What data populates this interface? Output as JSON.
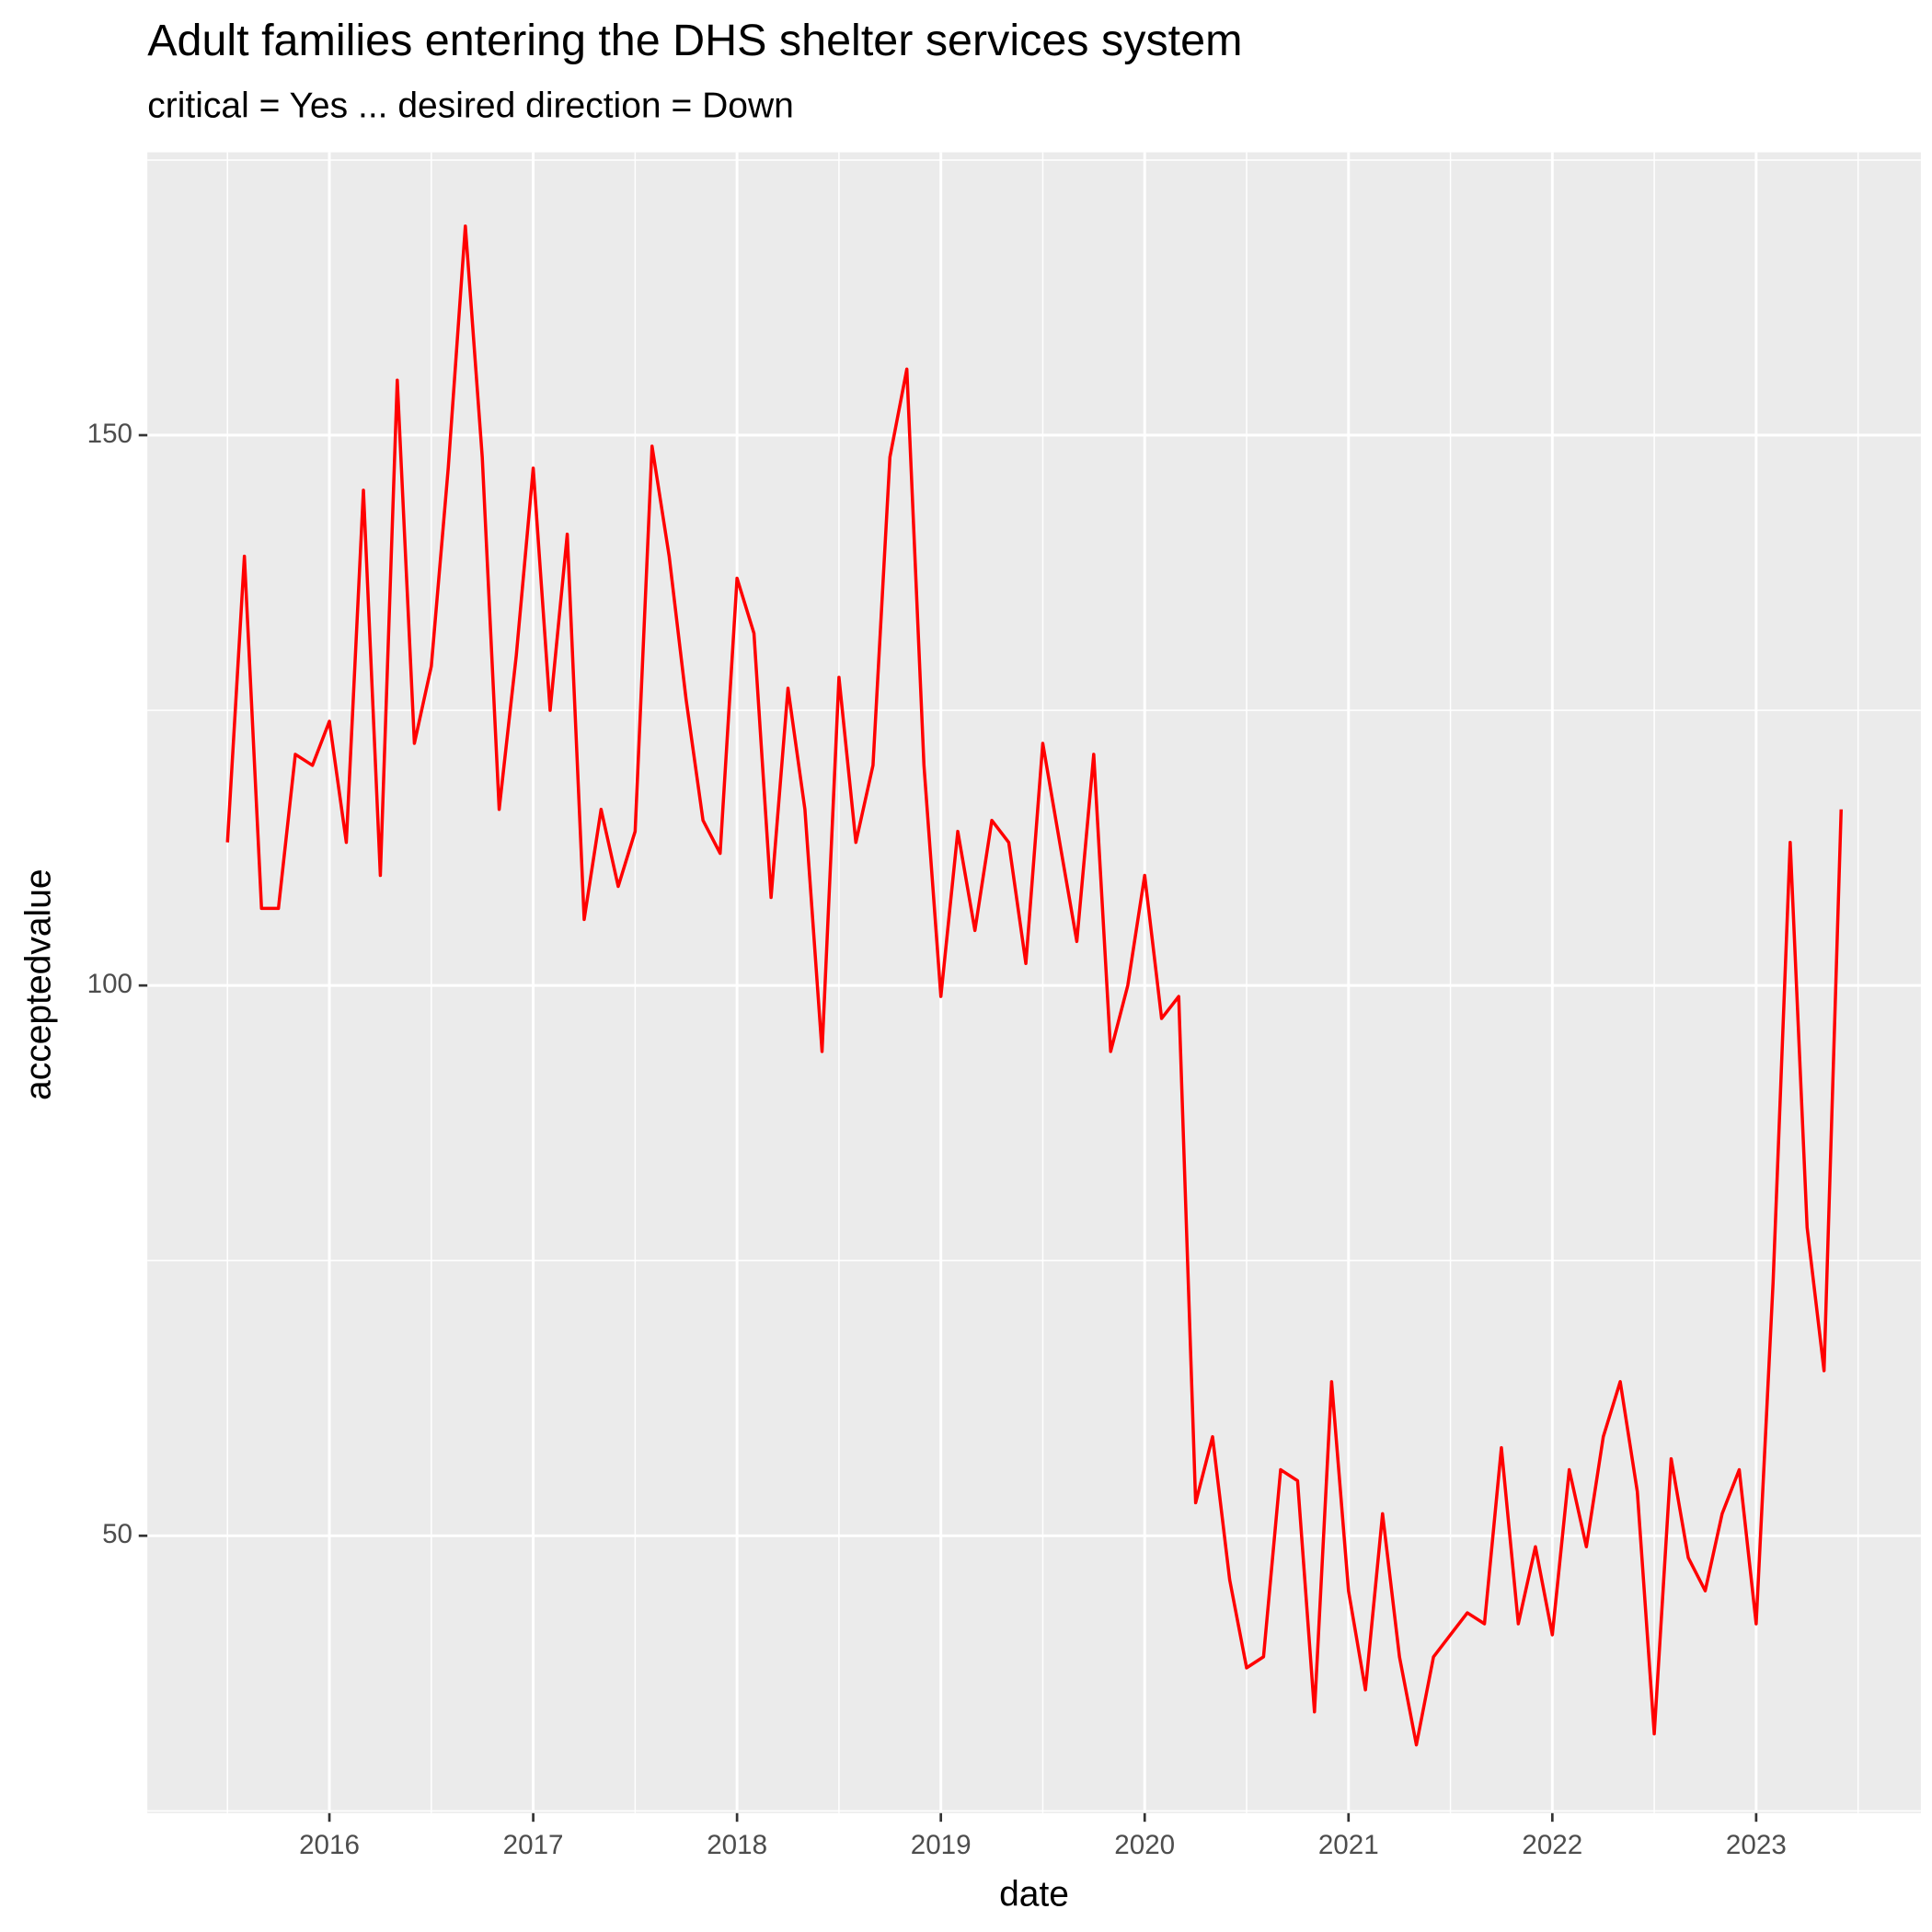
{
  "chart_data": {
    "type": "line",
    "title": "Adult families entering the DHS shelter services system",
    "subtitle": "critical = Yes ... desired direction = Down",
    "x_label": "date",
    "y_label": "acceptedvalue",
    "x": [
      2015.5,
      2015.583,
      2015.667,
      2015.75,
      2015.833,
      2015.917,
      2016,
      2016.083,
      2016.167,
      2016.25,
      2016.333,
      2016.417,
      2016.5,
      2016.583,
      2016.667,
      2016.75,
      2016.833,
      2016.917,
      2017,
      2017.083,
      2017.167,
      2017.25,
      2017.333,
      2017.417,
      2017.5,
      2017.583,
      2017.667,
      2017.75,
      2017.833,
      2017.917,
      2018,
      2018.083,
      2018.167,
      2018.25,
      2018.333,
      2018.417,
      2018.5,
      2018.583,
      2018.667,
      2018.75,
      2018.833,
      2018.917,
      2019,
      2019.083,
      2019.167,
      2019.25,
      2019.333,
      2019.417,
      2019.5,
      2019.583,
      2019.667,
      2019.75,
      2019.833,
      2019.917,
      2020,
      2020.083,
      2020.167,
      2020.25,
      2020.333,
      2020.417,
      2020.5,
      2020.583,
      2020.667,
      2020.75,
      2020.833,
      2020.917,
      2021,
      2021.083,
      2021.167,
      2021.25,
      2021.333,
      2021.417,
      2021.5,
      2021.583,
      2021.667,
      2021.75,
      2021.833,
      2021.917,
      2022,
      2022.083,
      2022.167,
      2022.25,
      2022.333,
      2022.417,
      2022.5,
      2022.583,
      2022.667,
      2022.75,
      2022.833,
      2022.917,
      2023,
      2023.083,
      2023.167,
      2023.25,
      2023.333,
      2023.417
    ],
    "series": [
      {
        "name": "acceptedvalue",
        "color": "#ff0000",
        "values": [
          113,
          139,
          107,
          107,
          121,
          120,
          124,
          113,
          145,
          110,
          155,
          122,
          129,
          147,
          169,
          148,
          116,
          130,
          147,
          125,
          141,
          106,
          116,
          109,
          114,
          149,
          139,
          126,
          115,
          112,
          137,
          132,
          108,
          127,
          116,
          94,
          128,
          113,
          120,
          148,
          156,
          120,
          99,
          114,
          105,
          115,
          113,
          102,
          122,
          113,
          104,
          121,
          94,
          100,
          110,
          97,
          99,
          53,
          59,
          46,
          38,
          39,
          56,
          55,
          34,
          64,
          45,
          36,
          52,
          39,
          31,
          39,
          41,
          43,
          42,
          58,
          42,
          49,
          41,
          56,
          49,
          59,
          64,
          54,
          32,
          57,
          48,
          45,
          52,
          56,
          42,
          73,
          113,
          78,
          65,
          116
        ]
      }
    ],
    "xlim": [
      2015.107,
      2023.808
    ],
    "xticks": [
      2016,
      2017,
      2018,
      2019,
      2020,
      2021,
      2022,
      2023
    ],
    "ylim": [
      24.8,
      175.7
    ],
    "yticks": [
      50,
      100,
      150
    ],
    "grid": true
  }
}
